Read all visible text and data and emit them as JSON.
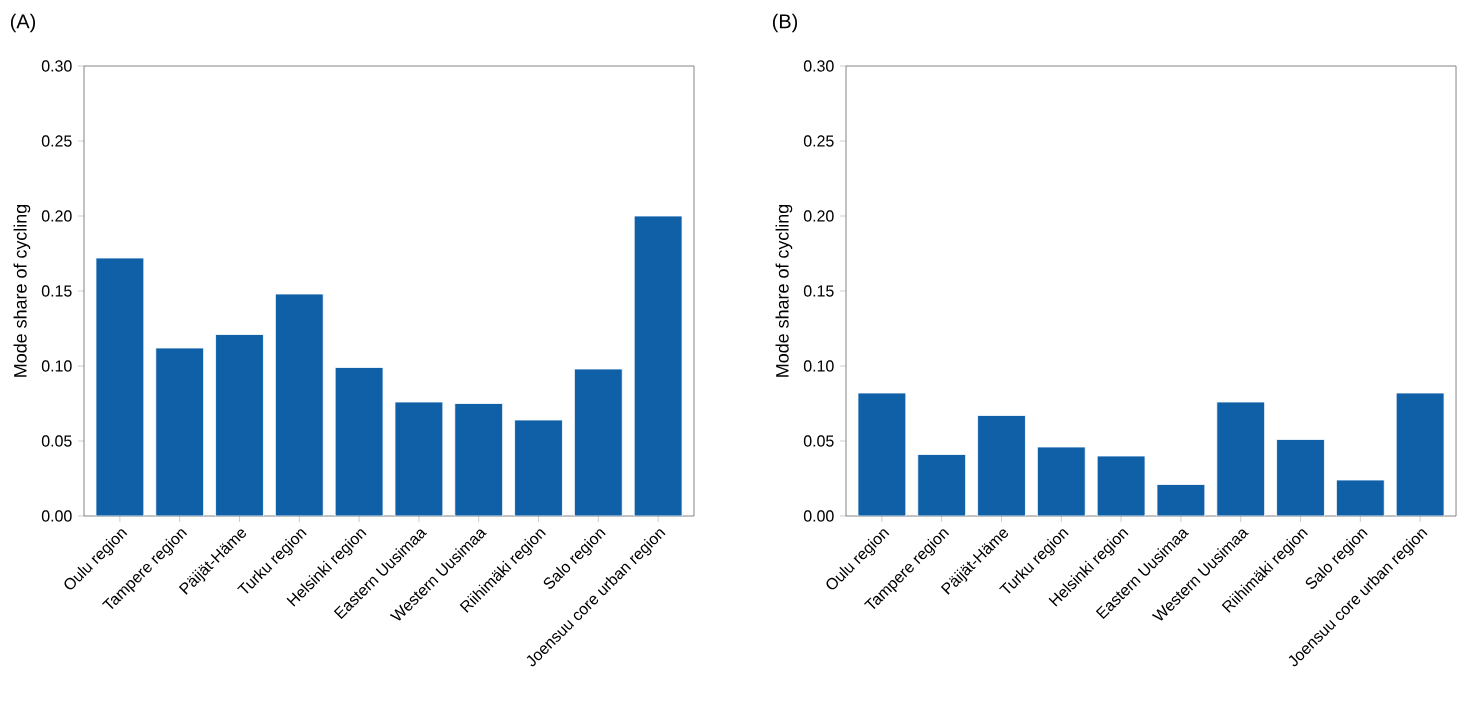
{
  "chart_data": [
    {
      "type": "bar",
      "title": "(A)",
      "ylabel": "Mode share of cycling",
      "categories": [
        "Oulu region",
        "Tampere region",
        "Päijät-Häme",
        "Turku region",
        "Helsinki region",
        "Eastern Uusimaa",
        "Western Uusimaa",
        "Riihimäki region",
        "Salo region",
        "Joensuu core urban region"
      ],
      "values": [
        0.172,
        0.112,
        0.121,
        0.148,
        0.099,
        0.076,
        0.075,
        0.064,
        0.098,
        0.2
      ],
      "color": "#1060a8",
      "ylim": [
        0,
        0.3
      ],
      "yticks": [
        {
          "value": 0,
          "label": "0.00"
        },
        {
          "value": 0.05,
          "label": "0.05"
        },
        {
          "value": 0.1,
          "label": "0.10"
        },
        {
          "value": 0.15,
          "label": "0.15"
        },
        {
          "value": 0.2,
          "label": "0.20"
        },
        {
          "value": 0.25,
          "label": "0.25"
        },
        {
          "value": 0.3,
          "label": "0.30"
        }
      ]
    },
    {
      "type": "bar",
      "title": "(B)",
      "ylabel": "Mode share of cycling",
      "categories": [
        "Oulu region",
        "Tampere region",
        "Päijät-Häme",
        "Turku region",
        "Helsinki region",
        "Eastern Uusimaa",
        "Western Uusimaa",
        "Riihimäki region",
        "Salo region",
        "Joensuu core urban region"
      ],
      "values": [
        0.082,
        0.041,
        0.067,
        0.046,
        0.04,
        0.021,
        0.076,
        0.051,
        0.024,
        0.082
      ],
      "color": "#1060a8",
      "ylim": [
        0,
        0.3
      ],
      "yticks": [
        {
          "value": 0,
          "label": "0.00"
        },
        {
          "value": 0.05,
          "label": "0.05"
        },
        {
          "value": 0.1,
          "label": "0.10"
        },
        {
          "value": 0.15,
          "label": "0.15"
        },
        {
          "value": 0.2,
          "label": "0.20"
        },
        {
          "value": 0.25,
          "label": "0.25"
        },
        {
          "value": 0.3,
          "label": "0.30"
        }
      ]
    }
  ]
}
